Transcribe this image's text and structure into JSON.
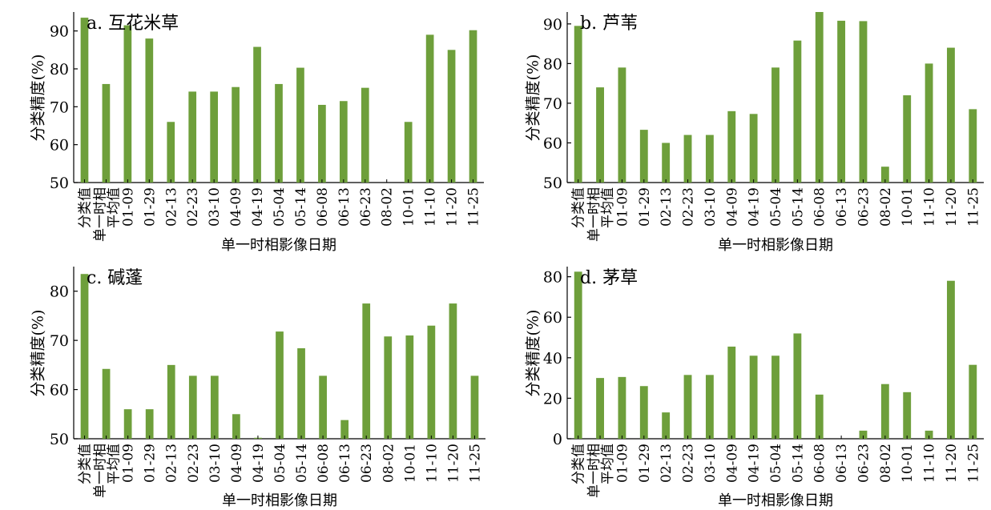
{
  "colors": {
    "bar": "#6e9f3b",
    "axis": "#000000"
  },
  "chart_data": [
    {
      "type": "bar",
      "title": "a. 互花米草",
      "ylabel": "分类精度(%)",
      "xlabel": "单一时相影像日期",
      "ylim": [
        50,
        95
      ],
      "yticks": [
        50,
        60,
        70,
        80,
        90
      ],
      "categories": [
        "分类值",
        "单一时相平均值",
        "01-09",
        "01-29",
        "02-13",
        "02-23",
        "03-10",
        "04-09",
        "04-19",
        "05-04",
        "05-14",
        "06-08",
        "06-13",
        "06-23",
        "08-02",
        "10-01",
        "11-10",
        "11-20",
        "11-25"
      ],
      "values": [
        93.5,
        76,
        91.5,
        88,
        66,
        74,
        74,
        75.2,
        85.8,
        76,
        80.3,
        70.5,
        71.5,
        75,
        50,
        66,
        89,
        85,
        90.2
      ]
    },
    {
      "type": "bar",
      "title": "b. 芦苇",
      "ylabel": "分类精度(%)",
      "xlabel": "单一时相影像日期",
      "ylim": [
        50,
        93
      ],
      "yticks": [
        50,
        60,
        70,
        80,
        90
      ],
      "categories": [
        "分类值",
        "单一时相平均值",
        "01-09",
        "01-29",
        "02-13",
        "02-23",
        "03-10",
        "04-09",
        "04-19",
        "05-04",
        "05-14",
        "06-08",
        "06-13",
        "06-23",
        "08-02",
        "10-01",
        "11-10",
        "11-20",
        "11-25"
      ],
      "values": [
        89.5,
        74,
        79,
        63.3,
        60,
        62,
        62,
        68,
        67.3,
        79,
        85.8,
        93,
        90.8,
        90.7,
        54,
        72,
        80,
        84,
        68.5
      ]
    },
    {
      "type": "bar",
      "title": "c. 碱蓬",
      "ylabel": "分类精度(%)",
      "xlabel": "单一时相影像日期",
      "ylim": [
        50,
        85
      ],
      "yticks": [
        50,
        60,
        70,
        80
      ],
      "categories": [
        "分类值",
        "单一时相平均值",
        "01-09",
        "01-29",
        "02-13",
        "02-23",
        "03-10",
        "04-09",
        "04-19",
        "05-04",
        "05-14",
        "06-08",
        "06-13",
        "06-23",
        "08-02",
        "10-01",
        "11-10",
        "11-20",
        "11-25"
      ],
      "values": [
        83.5,
        64.2,
        56,
        56,
        65,
        62.8,
        62.8,
        55,
        50.2,
        71.8,
        68.4,
        62.8,
        53.8,
        77.5,
        70.8,
        71,
        73,
        77.5,
        62.8
      ]
    },
    {
      "type": "bar",
      "title": "d. 茅草",
      "ylabel": "分类精度(%)",
      "xlabel": "单一时相影像日期",
      "ylim": [
        0,
        85
      ],
      "yticks": [
        0,
        20,
        40,
        60,
        80
      ],
      "categories": [
        "分类值",
        "单一时相平均值",
        "01-09",
        "01-29",
        "02-13",
        "02-23",
        "03-10",
        "04-09",
        "04-19",
        "05-04",
        "05-14",
        "06-08",
        "06-13",
        "06-23",
        "08-02",
        "10-01",
        "11-10",
        "11-20",
        "11-25"
      ],
      "values": [
        82.5,
        30,
        30.5,
        26,
        13,
        31.5,
        31.5,
        45.5,
        41,
        41,
        52,
        21.8,
        0,
        4,
        27,
        23,
        4,
        78,
        36.5
      ]
    }
  ]
}
